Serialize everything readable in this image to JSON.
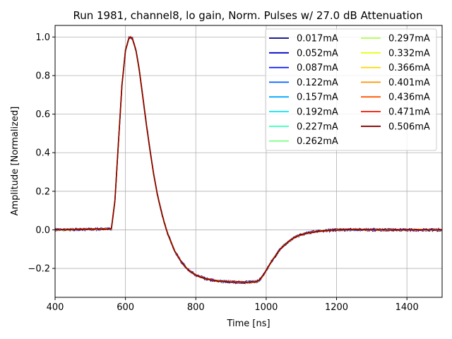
{
  "chart_data": {
    "type": "line",
    "title": "Run 1981, channel8, lo gain, Norm. Pulses w/ 27.0 dB Attenuation",
    "xlabel": "Time [ns]",
    "ylabel": "Amplitude [Normalized]",
    "xlim": [
      400,
      1500
    ],
    "ylim": [
      -0.35,
      1.06
    ],
    "xticks": [
      400,
      600,
      800,
      1000,
      1200,
      1400
    ],
    "yticks": [
      -0.2,
      0.0,
      0.2,
      0.4,
      0.6,
      0.8,
      1.0
    ],
    "xtick_labels": [
      "400",
      "600",
      "800",
      "1000",
      "1200",
      "1400"
    ],
    "ytick_labels": [
      "−0.2",
      "0.0",
      "0.2",
      "0.4",
      "0.6",
      "0.8",
      "1.0"
    ],
    "grid": true,
    "legend_position": "top-right",
    "legend_columns": 2,
    "pulse_shape": {
      "x": [
        400,
        560,
        570,
        580,
        590,
        600,
        610,
        615,
        620,
        630,
        640,
        650,
        660,
        670,
        680,
        690,
        700,
        710,
        720,
        740,
        760,
        780,
        800,
        830,
        860,
        900,
        940,
        970,
        980,
        990,
        1000,
        1010,
        1020,
        1040,
        1060,
        1080,
        1100,
        1130,
        1160,
        1200,
        1250,
        1300,
        1400,
        1500
      ],
      "y": [
        0.0,
        0.005,
        0.15,
        0.45,
        0.75,
        0.93,
        0.995,
        1.0,
        0.99,
        0.93,
        0.82,
        0.68,
        0.54,
        0.41,
        0.29,
        0.19,
        0.11,
        0.04,
        -0.02,
        -0.11,
        -0.17,
        -0.21,
        -0.235,
        -0.255,
        -0.265,
        -0.27,
        -0.272,
        -0.27,
        -0.262,
        -0.24,
        -0.21,
        -0.18,
        -0.15,
        -0.1,
        -0.065,
        -0.04,
        -0.025,
        -0.012,
        -0.005,
        0.0,
        0.002,
        0.0,
        0.0,
        0.0
      ]
    },
    "series": [
      {
        "name": "0.017mA",
        "color": "#00007f"
      },
      {
        "name": "0.052mA",
        "color": "#0000c8"
      },
      {
        "name": "0.087mA",
        "color": "#0012ff"
      },
      {
        "name": "0.122mA",
        "color": "#0060ff"
      },
      {
        "name": "0.157mA",
        "color": "#00a8ff"
      },
      {
        "name": "0.192mA",
        "color": "#0ce4f3"
      },
      {
        "name": "0.227mA",
        "color": "#43ffbd"
      },
      {
        "name": "0.262mA",
        "color": "#7aff82"
      },
      {
        "name": "0.297mA",
        "color": "#b3ff4a"
      },
      {
        "name": "0.332mA",
        "color": "#e7ff12"
      },
      {
        "name": "0.366mA",
        "color": "#ffd600"
      },
      {
        "name": "0.401mA",
        "color": "#ff9400"
      },
      {
        "name": "0.436mA",
        "color": "#ff5500"
      },
      {
        "name": "0.471mA",
        "color": "#f11200"
      },
      {
        "name": "0.506mA",
        "color": "#7f0000"
      }
    ]
  }
}
